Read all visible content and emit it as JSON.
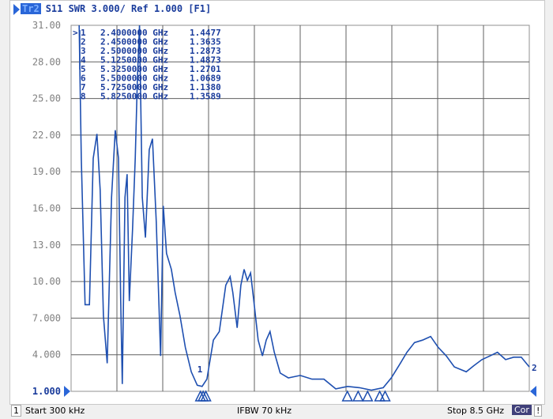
{
  "header": {
    "trace_badge": "Tr2",
    "title": "S11  SWR 3.000/ Ref 1.000 [F1]"
  },
  "footer": {
    "channel": "1",
    "start": "Start 300 kHz",
    "ifbw": "IFBW 70 kHz",
    "stop": "Stop 8.5 GHz",
    "correction": "Cor",
    "warning": "!"
  },
  "colors": {
    "trace": "#1e4fb0",
    "grid": "#606060",
    "text": "#1a3c9c",
    "badge": "#2a66d8"
  },
  "chart_data": {
    "type": "line",
    "title": "S11  SWR 3.000/ Ref 1.000 [F1]",
    "xlabel": "",
    "ylabel": "",
    "xlim": [
      0.0003,
      8.5
    ],
    "ylim": [
      1,
      31
    ],
    "grid": true,
    "y_ticks": [
      "31.00",
      "28.00",
      "25.00",
      "22.00",
      "19.00",
      "16.00",
      "13.00",
      "10.00",
      "7.000",
      "4.000",
      "1.000"
    ],
    "x": [
      0.15,
      0.19,
      0.26,
      0.34,
      0.41,
      0.48,
      0.54,
      0.6,
      0.67,
      0.75,
      0.82,
      0.88,
      0.92,
      0.95,
      1.0,
      1.04,
      1.08,
      1.14,
      1.19,
      1.23,
      1.27,
      1.32,
      1.38,
      1.45,
      1.51,
      1.58,
      1.66,
      1.71,
      1.77,
      1.86,
      1.93,
      2.02,
      2.12,
      2.23,
      2.34,
      2.43,
      2.52,
      2.64,
      2.75,
      2.87,
      2.95,
      3.0,
      3.08,
      3.15,
      3.21,
      3.27,
      3.33,
      3.39,
      3.47,
      3.55,
      3.62,
      3.69,
      3.77,
      3.88,
      4.03,
      4.25,
      4.47,
      4.69,
      4.91,
      5.13,
      5.35,
      5.57,
      5.79,
      5.94,
      6.08,
      6.23,
      6.37,
      6.52,
      6.67,
      6.81,
      6.96,
      7.11,
      7.33,
      7.47,
      7.62,
      7.77,
      7.91,
      8.06,
      8.21,
      8.35,
      8.5
    ],
    "series": [
      {
        "values": [
          31,
          20.1,
          8.1,
          8.1,
          20.1,
          22.1,
          17.5,
          7.2,
          3.3,
          16.9,
          22.4,
          20.1,
          8.4,
          1.6,
          16.9,
          18.8,
          8.4,
          14.3,
          20.1,
          26.6,
          31,
          16.9,
          13.6,
          20.8,
          21.7,
          14.9,
          3.9,
          16.2,
          12.3,
          11.0,
          9.1,
          7.2,
          4.6,
          2.6,
          1.5,
          1.4,
          2.0,
          5.2,
          5.9,
          9.7,
          10.4,
          9.1,
          6.2,
          9.7,
          11.0,
          10.1,
          10.7,
          8.4,
          5.2,
          3.9,
          5.2,
          5.9,
          4.2,
          2.5,
          2.1,
          2.3,
          2.0,
          2.0,
          1.2,
          1.4,
          1.3,
          1.1,
          1.3,
          2.1,
          3.1,
          4.2,
          5.0,
          5.2,
          5.5,
          4.6,
          3.9,
          3.0,
          2.6,
          3.1,
          3.6,
          3.9,
          4.2,
          3.6,
          3.8,
          3.8,
          3.0
        ]
      }
    ],
    "markers": [
      {
        "id": "1",
        "freq": "2.4000000 GHz",
        "f": 2.4,
        "value": "1.4477"
      },
      {
        "id": "2",
        "freq": "2.4500000 GHz",
        "f": 2.45,
        "value": "1.3635"
      },
      {
        "id": "3",
        "freq": "2.5000000 GHz",
        "f": 2.5,
        "value": "1.2873"
      },
      {
        "id": "4",
        "freq": "5.1250000 GHz",
        "f": 5.125,
        "value": "1.4873"
      },
      {
        "id": "5",
        "freq": "5.3250000 GHz",
        "f": 5.325,
        "value": "1.2701"
      },
      {
        "id": "6",
        "freq": "5.5000000 GHz",
        "f": 5.5,
        "value": "1.0689"
      },
      {
        "id": "7",
        "freq": "5.7250000 GHz",
        "f": 5.725,
        "value": "1.1380"
      },
      {
        "id": "8",
        "freq": "5.8250000 GHz",
        "f": 5.825,
        "value": "1.3589"
      }
    ],
    "active_marker_symbol": ">",
    "marker_label_1": "1",
    "edge_label": "2"
  }
}
